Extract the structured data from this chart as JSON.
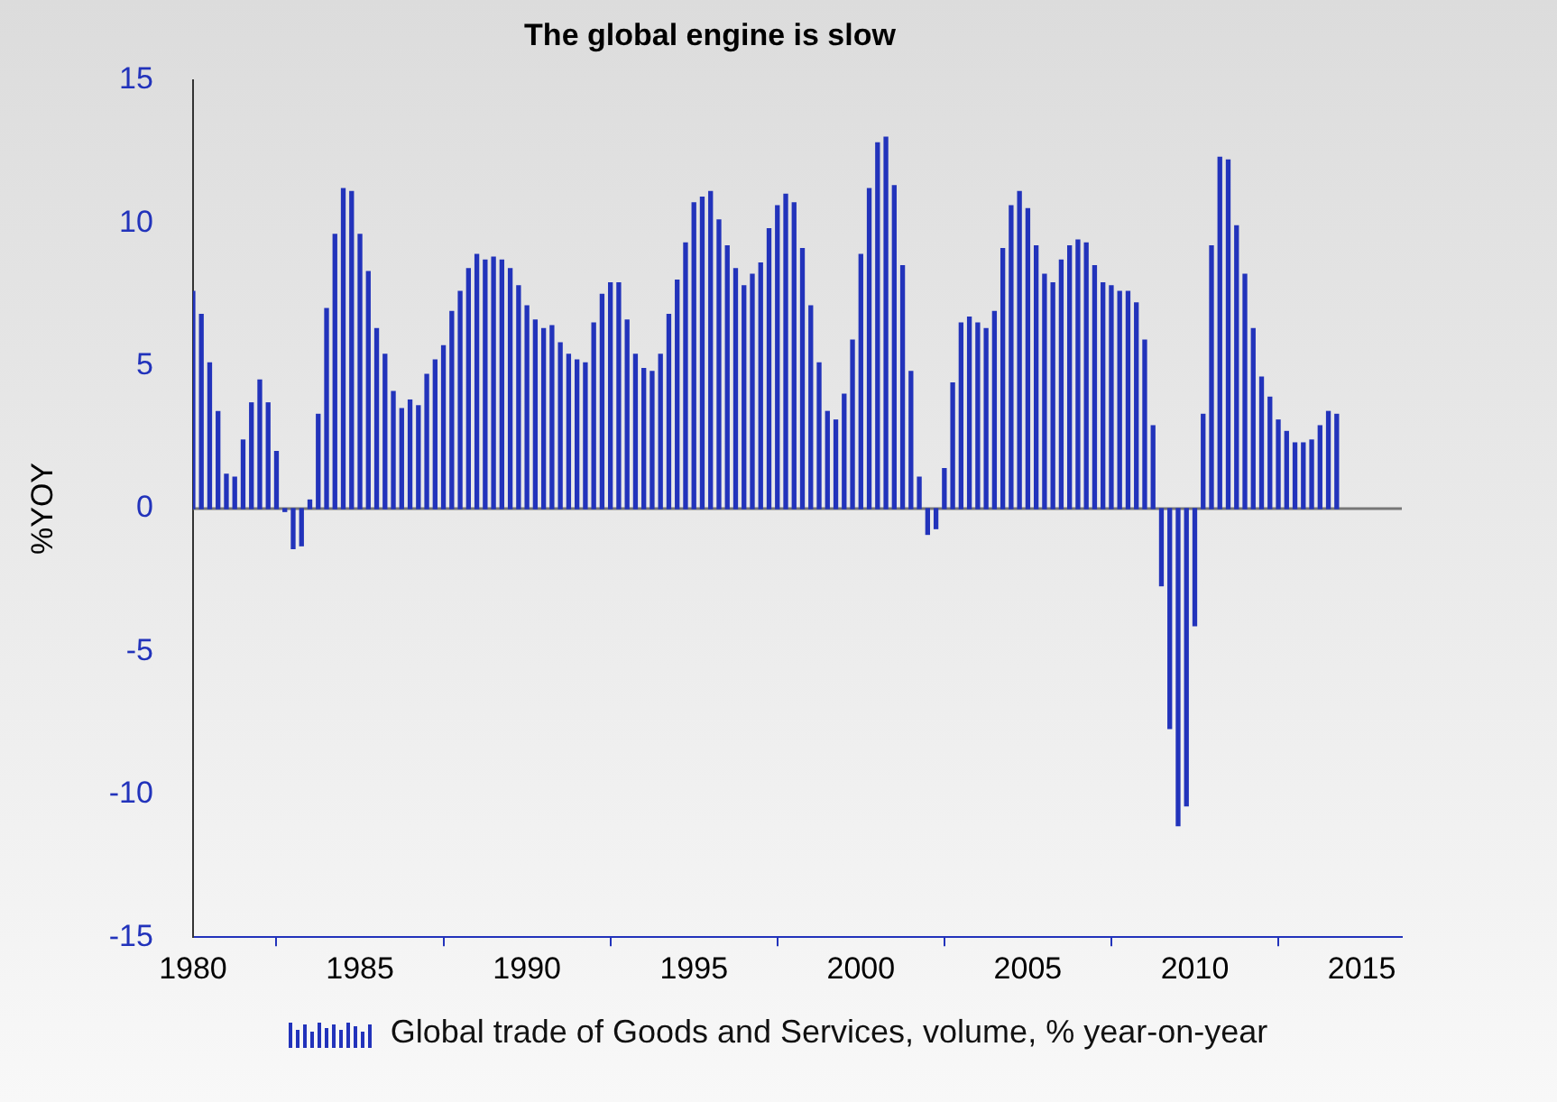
{
  "chart_data": {
    "type": "bar",
    "title": "The global engine is slow",
    "ylabel": "%YOY",
    "x": [
      1980,
      1980.25,
      1980.5,
      1980.75,
      1981,
      1981.25,
      1981.5,
      1981.75,
      1982,
      1982.25,
      1982.5,
      1982.75,
      1983,
      1983.25,
      1983.5,
      1983.75,
      1984,
      1984.25,
      1984.5,
      1984.75,
      1985,
      1985.25,
      1985.5,
      1985.75,
      1986,
      1986.25,
      1986.5,
      1986.75,
      1987,
      1987.25,
      1987.5,
      1987.75,
      1988,
      1988.25,
      1988.5,
      1988.75,
      1989,
      1989.25,
      1989.5,
      1989.75,
      1990,
      1990.25,
      1990.5,
      1990.75,
      1991,
      1991.25,
      1991.5,
      1991.75,
      1992,
      1992.25,
      1992.5,
      1992.75,
      1993,
      1993.25,
      1993.5,
      1993.75,
      1994,
      1994.25,
      1994.5,
      1994.75,
      1995,
      1995.25,
      1995.5,
      1995.75,
      1996,
      1996.25,
      1996.5,
      1996.75,
      1997,
      1997.25,
      1997.5,
      1997.75,
      1998,
      1998.25,
      1998.5,
      1998.75,
      1999,
      1999.25,
      1999.5,
      1999.75,
      2000,
      2000.25,
      2000.5,
      2000.75,
      2001,
      2001.25,
      2001.5,
      2001.75,
      2002,
      2002.25,
      2002.5,
      2002.75,
      2003,
      2003.25,
      2003.5,
      2003.75,
      2004,
      2004.25,
      2004.5,
      2004.75,
      2005,
      2005.25,
      2005.5,
      2005.75,
      2006,
      2006.25,
      2006.5,
      2006.75,
      2007,
      2007.25,
      2007.5,
      2007.75,
      2008,
      2008.25,
      2008.5,
      2008.75,
      2009,
      2009.25,
      2009.5,
      2009.75,
      2010,
      2010.25,
      2010.5,
      2010.75,
      2011,
      2011.25,
      2011.5,
      2011.75,
      2012,
      2012.25,
      2012.5,
      2012.75,
      2013,
      2013.25,
      2013.5,
      2013.75,
      2014,
      2014.25
    ],
    "series": [
      {
        "name": "Global trade of Goods and Services, volume, % year-on-year",
        "color": "#2233bb",
        "values": [
          7.6,
          6.8,
          5.1,
          3.4,
          1.2,
          1.1,
          2.4,
          3.7,
          4.5,
          3.7,
          2.0,
          -0.1,
          -1.4,
          -1.3,
          0.3,
          3.3,
          7.0,
          9.6,
          11.2,
          11.1,
          9.6,
          8.3,
          6.3,
          5.4,
          4.1,
          3.5,
          3.8,
          3.6,
          4.7,
          5.2,
          5.7,
          6.9,
          7.6,
          8.4,
          8.9,
          8.7,
          8.8,
          8.7,
          8.4,
          7.8,
          7.1,
          6.6,
          6.3,
          6.4,
          5.8,
          5.4,
          5.2,
          5.1,
          6.5,
          7.5,
          7.9,
          7.9,
          6.6,
          5.4,
          4.9,
          4.8,
          5.4,
          6.8,
          8.0,
          9.3,
          10.7,
          10.9,
          11.1,
          10.1,
          9.2,
          8.4,
          7.8,
          8.2,
          8.6,
          9.8,
          10.6,
          11.0,
          10.7,
          9.1,
          7.1,
          5.1,
          3.4,
          3.1,
          4.0,
          5.9,
          8.9,
          11.2,
          12.8,
          13.0,
          11.3,
          8.5,
          4.8,
          1.1,
          -0.9,
          -0.7,
          1.4,
          4.4,
          6.5,
          6.7,
          6.5,
          6.3,
          6.9,
          9.1,
          10.6,
          11.1,
          10.5,
          9.2,
          8.2,
          7.9,
          8.7,
          9.2,
          9.4,
          9.3,
          8.5,
          7.9,
          7.8,
          7.6,
          7.6,
          7.2,
          5.9,
          2.9,
          -2.7,
          -7.7,
          -11.1,
          -10.4,
          -4.1,
          3.3,
          9.2,
          12.3,
          12.2,
          9.9,
          8.2,
          6.3,
          4.6,
          3.9,
          3.1,
          2.7,
          2.3,
          2.3,
          2.4,
          2.9,
          3.4,
          3.3
        ]
      }
    ],
    "xlim": [
      1980,
      2016.2
    ],
    "xticks": [
      1980,
      1985,
      1990,
      1995,
      2000,
      2005,
      2010,
      2015
    ],
    "ylim": [
      -15,
      15
    ],
    "yticks": [
      -15,
      -10,
      -5,
      0,
      5,
      10,
      15
    ],
    "ref_lines": [
      {
        "axis": "y",
        "value": 0,
        "color": "#777777"
      }
    ],
    "grid": false,
    "legend": "bottom"
  }
}
